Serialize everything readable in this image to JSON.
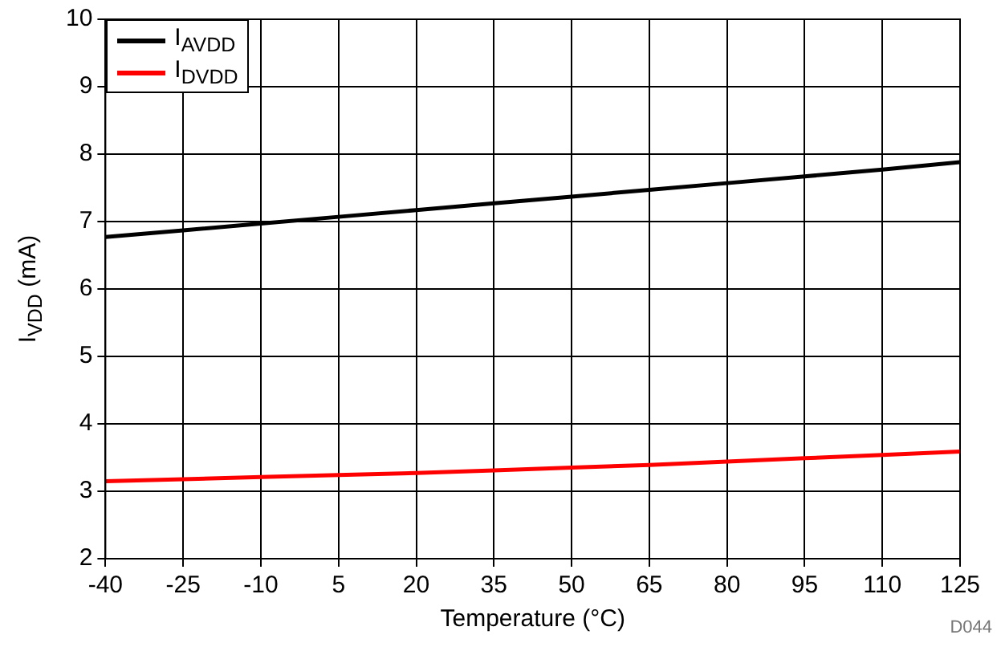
{
  "chart_data": {
    "type": "line",
    "xlabel": "Temperature (°C)",
    "ylabel": "I$_{VDD}$ (mA)",
    "x": [
      -40,
      -25,
      -10,
      5,
      20,
      35,
      50,
      65,
      80,
      95,
      110,
      125
    ],
    "series": [
      {
        "name": "I$_{AVDD}$",
        "color": "#000000",
        "values": [
          6.77,
          6.87,
          6.97,
          7.07,
          7.17,
          7.27,
          7.37,
          7.47,
          7.57,
          7.67,
          7.77,
          7.88
        ]
      },
      {
        "name": "I$_{DVDD}$",
        "color": "#ff0000",
        "values": [
          3.15,
          3.18,
          3.21,
          3.24,
          3.27,
          3.31,
          3.35,
          3.39,
          3.44,
          3.49,
          3.54,
          3.59
        ]
      }
    ],
    "xlim": [
      -40,
      125
    ],
    "xticks": [
      -40,
      -25,
      -10,
      5,
      20,
      35,
      50,
      65,
      80,
      95,
      110,
      125
    ],
    "ylim": [
      2,
      10
    ],
    "yticks": [
      2,
      3,
      4,
      5,
      6,
      7,
      8,
      9,
      10
    ],
    "grid": true,
    "legend": "top left",
    "marker": "none",
    "line_style": "solid",
    "annotations": [
      "D044"
    ]
  }
}
